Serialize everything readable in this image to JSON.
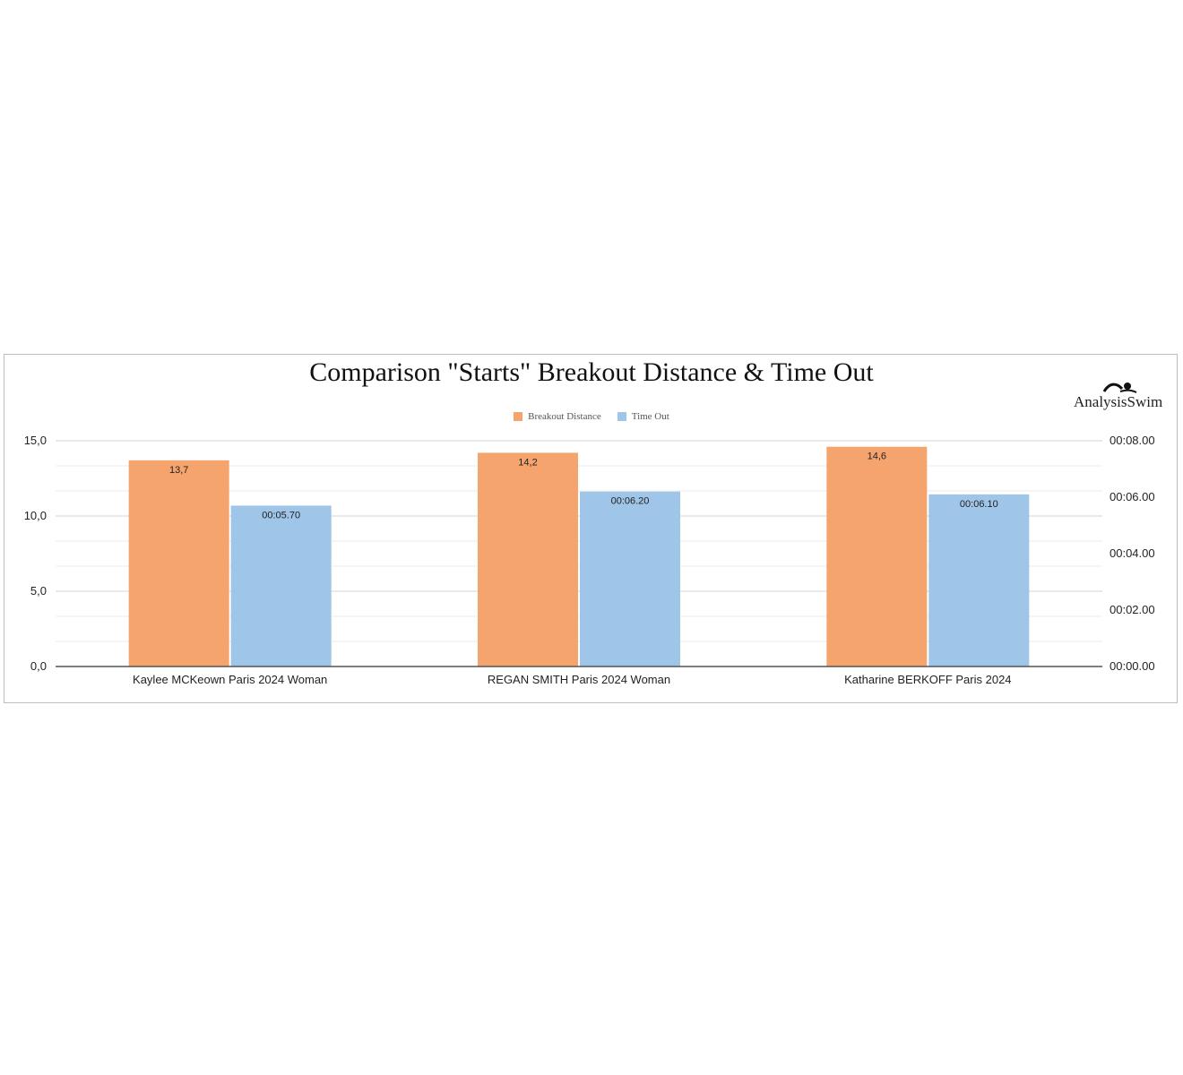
{
  "chart_data": {
    "type": "bar",
    "title": "Comparison \"Starts\" Breakout Distance & Time Out",
    "categories": [
      "Kaylee MCKeown Paris 2024 Woman",
      "REGAN SMITH Paris 2024 Woman",
      "Katharine BERKOFF Paris 2024"
    ],
    "series": [
      {
        "name": "Breakout Distance",
        "axis": "left",
        "color": "#f4a46c",
        "values": [
          13.7,
          14.2,
          14.6
        ],
        "labels": [
          "13,7",
          "14,2",
          "14,6"
        ]
      },
      {
        "name": "Time Out",
        "axis": "right",
        "color": "#9fc5e8",
        "values": [
          5.7,
          6.2,
          6.1
        ],
        "labels": [
          "00:05.70",
          "00:06.20",
          "00:06.10"
        ]
      }
    ],
    "yaxis_left": {
      "min": 0,
      "max": 15,
      "ticks": [
        0,
        5,
        10,
        15
      ],
      "tick_labels": [
        "0,0",
        "5,0",
        "10,0",
        "15,0"
      ]
    },
    "yaxis_right": {
      "min": 0,
      "max": 8,
      "ticks": [
        0,
        2,
        4,
        6,
        8
      ],
      "tick_labels": [
        "00:00.00",
        "00:02.00",
        "00:04.00",
        "00:06.00",
        "00:08.00"
      ]
    },
    "grid": true,
    "legend": "top-center",
    "xlabel": "",
    "ylabel": ""
  },
  "branding": {
    "logo_text": "AnalysisSwim"
  }
}
